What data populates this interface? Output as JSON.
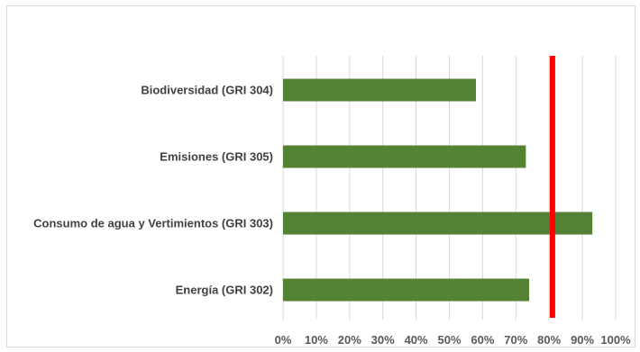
{
  "chart_data": {
    "type": "bar",
    "orientation": "horizontal",
    "categories": [
      "Biodiversidad (GRI 304)",
      "Emisiones (GRI 305)",
      "Consumo de agua y Vertimientos (GRI 303)",
      "Energía (GRI 302)"
    ],
    "values": [
      0.58,
      0.73,
      0.93,
      0.74
    ],
    "xlim": [
      0,
      1
    ],
    "xticks": [
      0,
      0.1,
      0.2,
      0.3,
      0.4,
      0.5,
      0.6,
      0.7,
      0.8,
      0.9,
      1.0
    ],
    "xtick_labels": [
      "0%",
      "10%",
      "20%",
      "30%",
      "40%",
      "50%",
      "60%",
      "70%",
      "80%",
      "90%",
      "100%"
    ],
    "reference_line": 0.81,
    "grid": "vertical",
    "legend": "none",
    "title": "",
    "xlabel": "",
    "ylabel": ""
  },
  "colors": {
    "bar": "#548235",
    "reference_line": "#ff0000",
    "grid": "#d9d9d9"
  }
}
